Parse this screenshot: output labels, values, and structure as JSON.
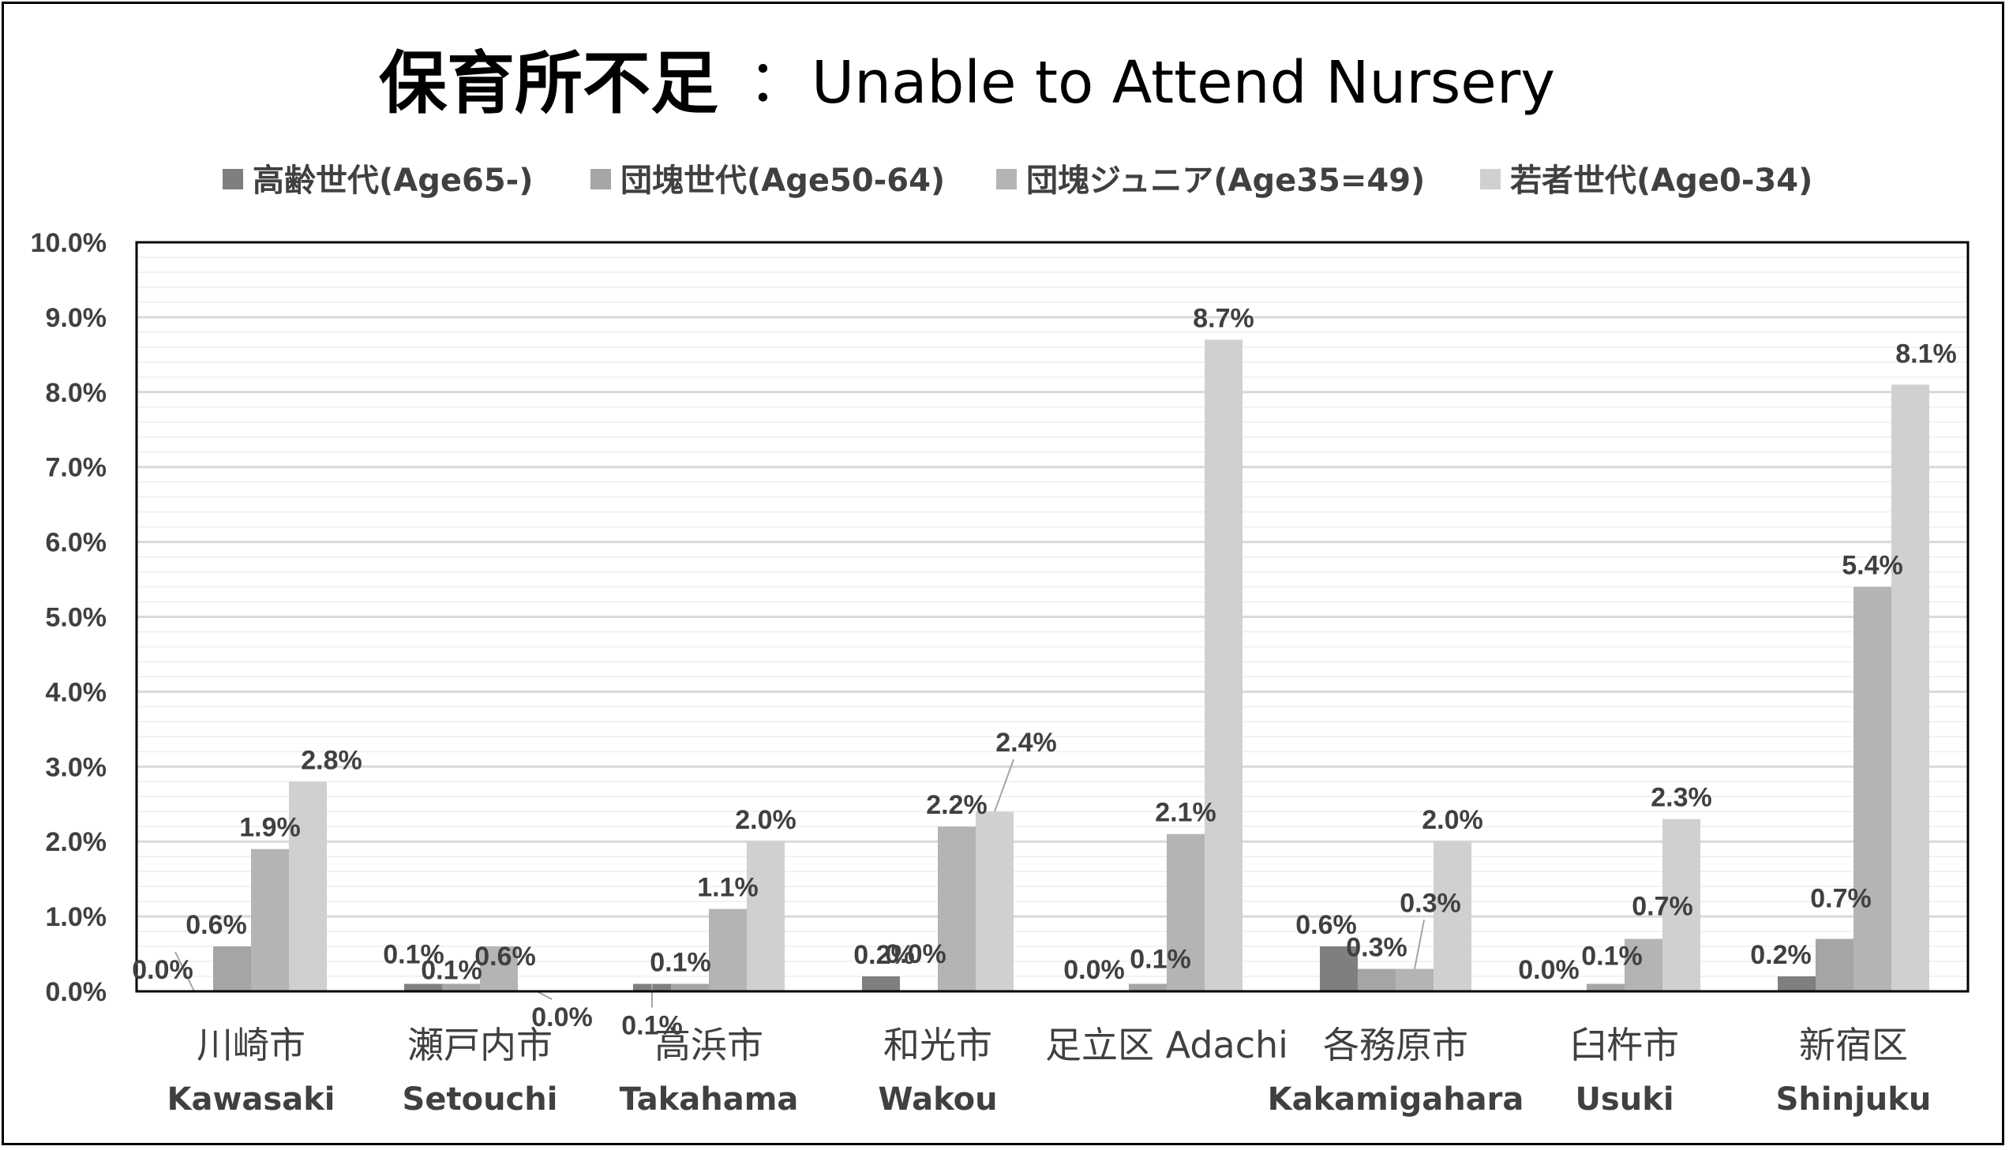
{
  "chart_data": {
    "type": "bar",
    "title_jp": "保育所不足",
    "title_sep": "：",
    "title_en": "Unable to Attend Nursery",
    "categories": [
      {
        "jp": "川崎市",
        "en": "Kawasaki"
      },
      {
        "jp": "瀬戸内市",
        "en": "Setouchi"
      },
      {
        "jp": "高浜市",
        "en": "Takahama"
      },
      {
        "jp": "和光市",
        "en": "Wakou"
      },
      {
        "jp": "足立区 Adachi",
        "en": ""
      },
      {
        "jp": "各務原市",
        "en": "Kakamigahara"
      },
      {
        "jp": "臼杵市",
        "en": "Usuki"
      },
      {
        "jp": "新宿区",
        "en": "Shinjuku"
      }
    ],
    "series": [
      {
        "name": "高齢世代(Age65-)",
        "color": "#7f7f7f",
        "values": [
          0.0,
          0.1,
          0.1,
          0.2,
          0.0,
          0.6,
          0.0,
          0.2
        ],
        "labels": [
          "0.0%",
          "0.1%",
          "0.1%",
          "0.2%",
          "0.0%",
          "0.6%",
          "0.0%",
          "0.2%"
        ]
      },
      {
        "name": "団塊世代(Age50-64)",
        "color": "#a5a5a5",
        "values": [
          0.6,
          0.1,
          0.1,
          0.0,
          0.1,
          0.3,
          0.1,
          0.7
        ],
        "labels": [
          "0.6%",
          "0.1%",
          "0.1%",
          "0.0%",
          "0.1%",
          "0.3%",
          "0.1%",
          "0.7%"
        ]
      },
      {
        "name": "団塊ジュニア(Age35=49)",
        "color": "#b4b4b4",
        "values": [
          1.9,
          0.6,
          1.1,
          2.2,
          2.1,
          0.3,
          0.7,
          5.4
        ],
        "labels": [
          "1.9%",
          "0.6%",
          "1.1%",
          "2.2%",
          "2.1%",
          "0.3%",
          "0.7%",
          "5.4%"
        ]
      },
      {
        "name": "若者世代(Age0-34)",
        "color": "#d0d0d0",
        "values": [
          2.8,
          0.0,
          2.0,
          2.4,
          8.7,
          2.0,
          2.3,
          8.1
        ],
        "labels": [
          "2.8%",
          "0.0%",
          "2.0%",
          "2.4%",
          "8.7%",
          "2.0%",
          "2.3%",
          "8.1%"
        ]
      }
    ],
    "y_ticks": [
      "0.0%",
      "1.0%",
      "2.0%",
      "3.0%",
      "4.0%",
      "5.0%",
      "6.0%",
      "7.0%",
      "8.0%",
      "9.0%",
      "10.0%"
    ],
    "ylim": [
      0,
      10
    ],
    "grid": true,
    "legend_position": "top-center",
    "colors": {
      "axis": "#000000",
      "grid_major": "#d9d9d9",
      "grid_minor": "#eeeeee",
      "text": "#404040"
    }
  }
}
